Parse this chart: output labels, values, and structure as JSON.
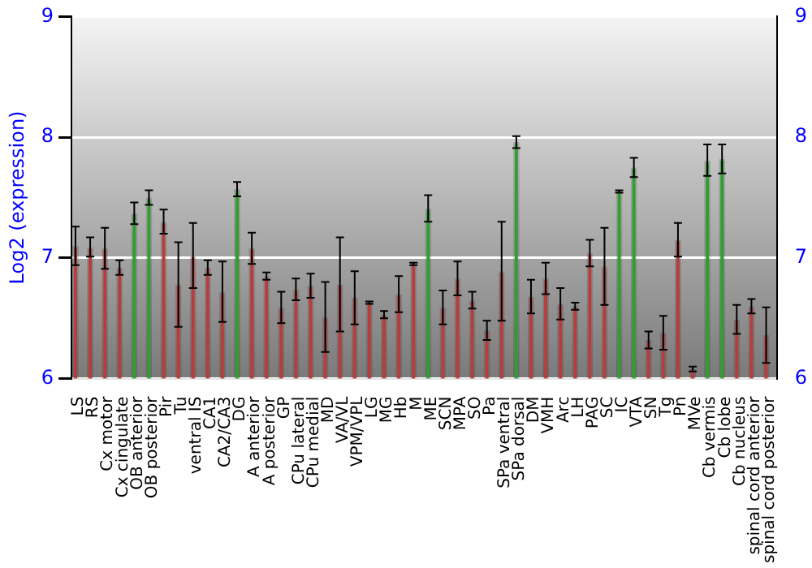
{
  "chart_data": {
    "type": "bar",
    "ylabel": "Log2 (expression)",
    "categories": [
      "LS",
      "RS",
      "Cx motor",
      "Cx cingulate",
      "OB anterior",
      "OB posterior",
      "Pir",
      "Tu",
      "ventral IS",
      "CA1",
      "CA2/CA3",
      "DG",
      "A anterior",
      "A posterior",
      "GP",
      "CPu lateral",
      "CPu medial",
      "MD",
      "VA/VL",
      "VPM/VPL",
      "LG",
      "MG",
      "Hb",
      "M",
      "ME",
      "SCN",
      "MPA",
      "SO",
      "Pa",
      "SPa ventral",
      "SPa dorsal",
      "DM",
      "VMH",
      "Arc",
      "LH",
      "PAG",
      "SC",
      "IC",
      "VTA",
      "SN",
      "Tg",
      "Pn",
      "MVe",
      "Cb vermis",
      "Cb lobe",
      "Cb nucleus",
      "spinal cord anterior",
      "spinal cord posterior"
    ],
    "values": [
      7.1,
      7.09,
      7.08,
      6.92,
      7.37,
      7.5,
      7.3,
      6.78,
      7.02,
      6.92,
      6.72,
      7.57,
      7.08,
      6.85,
      6.59,
      6.74,
      6.77,
      6.51,
      6.78,
      6.67,
      6.63,
      6.53,
      6.7,
      6.95,
      7.41,
      6.59,
      6.83,
      6.65,
      6.4,
      6.89,
      7.96,
      6.68,
      6.83,
      6.62,
      6.6,
      7.04,
      6.93,
      7.55,
      7.75,
      6.32,
      6.38,
      7.15,
      6.08,
      7.81,
      7.82,
      6.49,
      6.6,
      6.36
    ],
    "errors": [
      0.16,
      0.08,
      0.17,
      0.06,
      0.09,
      0.06,
      0.1,
      0.35,
      0.27,
      0.06,
      0.25,
      0.06,
      0.13,
      0.03,
      0.13,
      0.09,
      0.1,
      0.29,
      0.39,
      0.22,
      0.01,
      0.03,
      0.15,
      0.01,
      0.11,
      0.14,
      0.14,
      0.07,
      0.08,
      0.41,
      0.05,
      0.14,
      0.13,
      0.13,
      0.03,
      0.11,
      0.32,
      0.01,
      0.08,
      0.07,
      0.14,
      0.14,
      0.02,
      0.13,
      0.12,
      0.12,
      0.06,
      0.23
    ],
    "colors": [
      "#b83c3c",
      "#b83c3c",
      "#b83c3c",
      "#b83c3c",
      "#2f9e2f",
      "#2f9e2f",
      "#b83c3c",
      "#b83c3c",
      "#b83c3c",
      "#b83c3c",
      "#b83c3c",
      "#2f9e2f",
      "#b83c3c",
      "#b83c3c",
      "#b83c3c",
      "#b83c3c",
      "#b83c3c",
      "#b83c3c",
      "#b83c3c",
      "#b83c3c",
      "#b83c3c",
      "#b83c3c",
      "#b83c3c",
      "#b83c3c",
      "#2f9e2f",
      "#b83c3c",
      "#b83c3c",
      "#b83c3c",
      "#b83c3c",
      "#b83c3c",
      "#2f9e2f",
      "#b83c3c",
      "#b83c3c",
      "#b83c3c",
      "#b83c3c",
      "#b83c3c",
      "#b83c3c",
      "#2f9e2f",
      "#2f9e2f",
      "#b83c3c",
      "#b83c3c",
      "#b83c3c",
      "#b83c3c",
      "#2f9e2f",
      "#2f9e2f",
      "#b83c3c",
      "#b83c3c",
      "#b83c3c"
    ],
    "ylim": [
      6,
      9
    ],
    "yticks": [
      6,
      7,
      8,
      9
    ],
    "y2lim": [
      6,
      9
    ],
    "y2ticks": [
      6,
      7,
      8,
      9
    ],
    "grid": "y"
  }
}
